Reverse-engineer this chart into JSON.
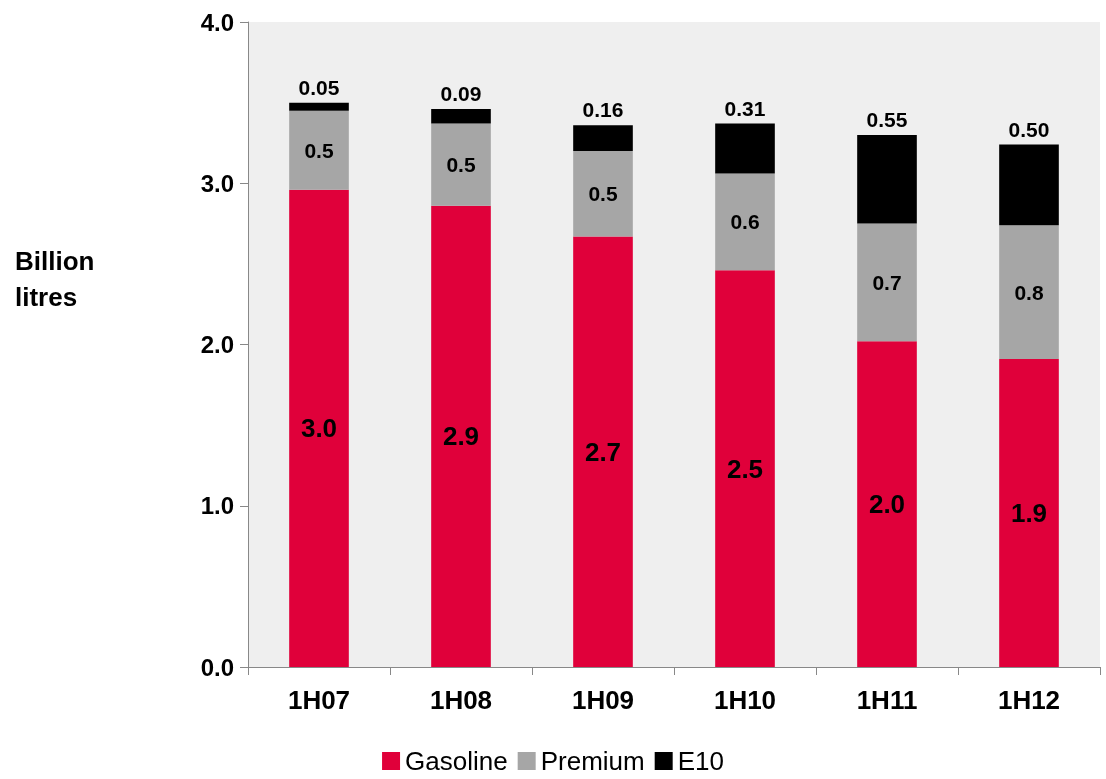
{
  "chart_data": {
    "type": "bar",
    "ylabel": "Billion\nlitres",
    "stacked": true,
    "categories": [
      "1H07",
      "1H08",
      "1H09",
      "1H10",
      "1H11",
      "1H12"
    ],
    "series": [
      {
        "name": "Gasoline",
        "color": "#e0003a",
        "values": [
          2.96,
          2.86,
          2.67,
          2.46,
          2.02,
          1.91
        ],
        "value_labels": [
          "3.0",
          "2.9",
          "2.7",
          "2.5",
          "2.0",
          "1.9"
        ]
      },
      {
        "name": "Premium",
        "color": "#a6a6a6",
        "values": [
          0.49,
          0.51,
          0.53,
          0.6,
          0.73,
          0.83
        ],
        "value_labels": [
          "0.5",
          "0.5",
          "0.5",
          "0.6",
          "0.7",
          "0.8"
        ]
      },
      {
        "name": "E10",
        "color": "#000000",
        "values": [
          0.05,
          0.09,
          0.16,
          0.31,
          0.55,
          0.5
        ],
        "value_labels": [
          "0.05",
          "0.09",
          "0.16",
          "0.31",
          "0.55",
          "0.50"
        ]
      }
    ],
    "ylim": [
      0,
      4
    ],
    "yticks": [
      {
        "value": 0,
        "label": "0.0"
      },
      {
        "value": 1,
        "label": "1.0"
      },
      {
        "value": 2,
        "label": "2.0"
      },
      {
        "value": 3,
        "label": "3.0"
      },
      {
        "value": 4,
        "label": "4.0"
      }
    ],
    "legend": "bottom",
    "grid": false
  }
}
